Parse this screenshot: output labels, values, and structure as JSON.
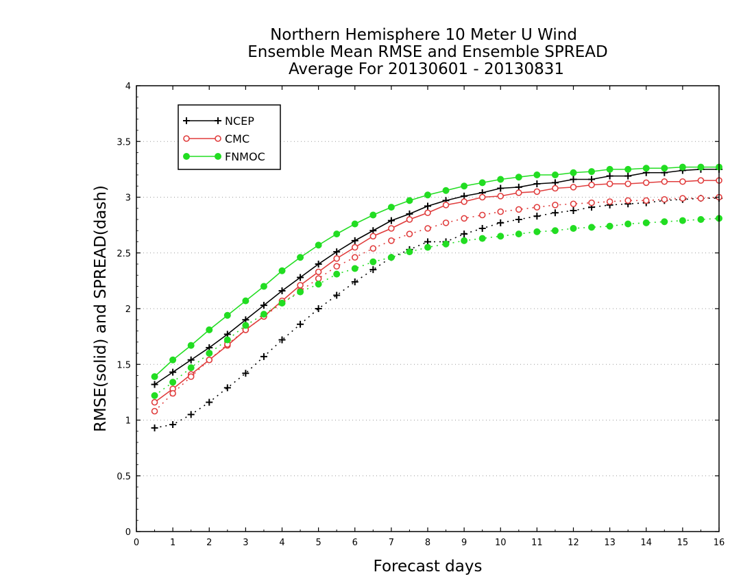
{
  "chart_data": {
    "type": "line",
    "title": [
      "Northern Hemisphere 10 Meter U Wind",
      "Ensemble Mean RMSE and Ensemble SPREAD",
      "Average For 20130601 - 20130831"
    ],
    "xlabel": "Forecast days",
    "ylabel": "RMSE(solid) and SPREAD(dash)",
    "xlim": [
      0,
      16
    ],
    "ylim": [
      0,
      4
    ],
    "xticks": [
      "0",
      "1",
      "2",
      "3",
      "4",
      "5",
      "6",
      "7",
      "8",
      "9",
      "10",
      "11",
      "12",
      "13",
      "14",
      "15",
      "16"
    ],
    "yticks": [
      "0",
      "0.5",
      "1",
      "1.5",
      "2",
      "2.5",
      "3",
      "3.5",
      "4"
    ],
    "grid": "horizontal dotted",
    "legend_position": "top-left",
    "x": [
      0.5,
      1,
      1.5,
      2,
      2.5,
      3,
      3.5,
      4,
      4.5,
      5,
      5.5,
      6,
      6.5,
      7,
      7.5,
      8,
      8.5,
      9,
      9.5,
      10,
      10.5,
      11,
      11.5,
      12,
      12.5,
      13,
      13.5,
      14,
      14.5,
      15,
      15.5,
      16
    ],
    "series": [
      {
        "name": "NCEP",
        "color": "#000000",
        "marker": "plus",
        "rmse": [
          1.32,
          1.43,
          1.54,
          1.65,
          1.77,
          1.9,
          2.03,
          2.16,
          2.28,
          2.4,
          2.51,
          2.61,
          2.7,
          2.79,
          2.85,
          2.92,
          2.97,
          3.01,
          3.04,
          3.08,
          3.09,
          3.12,
          3.13,
          3.16,
          3.16,
          3.19,
          3.19,
          3.22,
          3.22,
          3.24,
          3.25,
          3.25
        ],
        "spread": [
          0.93,
          0.96,
          1.05,
          1.16,
          1.29,
          1.42,
          1.57,
          1.72,
          1.86,
          2.0,
          2.12,
          2.24,
          2.35,
          2.46,
          2.53,
          2.6,
          2.6,
          2.67,
          2.72,
          2.77,
          2.8,
          2.83,
          2.86,
          2.88,
          2.91,
          2.93,
          2.94,
          2.95,
          2.97,
          2.98,
          2.99,
          2.99
        ]
      },
      {
        "name": "CMC",
        "color": "#e03c3c",
        "marker": "circle",
        "rmse": [
          1.16,
          1.28,
          1.41,
          1.54,
          1.67,
          1.81,
          1.93,
          2.07,
          2.21,
          2.33,
          2.45,
          2.55,
          2.65,
          2.72,
          2.8,
          2.86,
          2.93,
          2.96,
          3.0,
          3.01,
          3.04,
          3.05,
          3.08,
          3.09,
          3.11,
          3.12,
          3.12,
          3.13,
          3.14,
          3.14,
          3.15,
          3.15
        ],
        "spread": [
          1.08,
          1.24,
          1.39,
          1.54,
          1.68,
          1.81,
          1.93,
          2.05,
          2.16,
          2.27,
          2.38,
          2.46,
          2.54,
          2.61,
          2.67,
          2.72,
          2.77,
          2.81,
          2.84,
          2.87,
          2.89,
          2.91,
          2.93,
          2.94,
          2.95,
          2.96,
          2.97,
          2.97,
          2.98,
          2.99,
          2.99,
          3.0
        ]
      },
      {
        "name": "FNMOC",
        "color": "#22dd22",
        "marker": "dot",
        "rmse": [
          1.39,
          1.54,
          1.67,
          1.81,
          1.94,
          2.07,
          2.2,
          2.34,
          2.46,
          2.57,
          2.67,
          2.76,
          2.84,
          2.91,
          2.97,
          3.02,
          3.06,
          3.1,
          3.13,
          3.16,
          3.18,
          3.2,
          3.2,
          3.22,
          3.23,
          3.25,
          3.25,
          3.26,
          3.26,
          3.27,
          3.27,
          3.27
        ],
        "spread": [
          1.22,
          1.34,
          1.47,
          1.6,
          1.72,
          1.85,
          1.95,
          2.05,
          2.15,
          2.22,
          2.31,
          2.36,
          2.42,
          2.46,
          2.51,
          2.55,
          2.58,
          2.61,
          2.63,
          2.65,
          2.67,
          2.69,
          2.7,
          2.72,
          2.73,
          2.74,
          2.76,
          2.77,
          2.78,
          2.79,
          2.8,
          2.81
        ]
      }
    ]
  }
}
